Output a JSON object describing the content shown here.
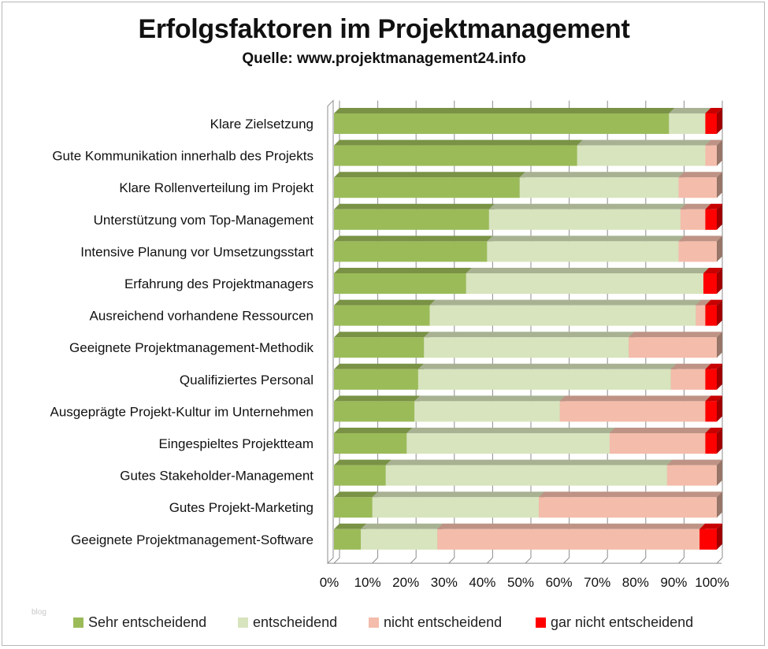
{
  "chart_data": {
    "type": "bar",
    "orientation": "horizontal",
    "stacked": "percent",
    "title": "Erfolgsfaktoren im Projektmanagement",
    "subtitle": "Quelle: www.projektmanagement24.info",
    "watermark": "blog",
    "xlim": [
      0,
      100
    ],
    "x_ticks": [
      "0%",
      "10%",
      "20%",
      "30%",
      "40%",
      "50%",
      "60%",
      "70%",
      "80%",
      "90%",
      "100%"
    ],
    "categories": [
      "Klare Zielsetzung",
      "Gute Kommunikation innerhalb des Projekts",
      "Klare Rollenverteilung im Projekt",
      "Unterstützung vom Top-Management",
      "Intensive Planung vor Umsetzungsstart",
      "Erfahrung des Projektmanagers",
      "Ausreichend vorhandene Ressourcen",
      "Geeignete Projektmanagement-Methodik",
      "Qualifiziertes Personal",
      "Ausgeprägte Projekt-Kultur im Unternehmen",
      "Eingespieltes Projektteam",
      "Gutes Stakeholder-Management",
      "Gutes Projekt-Marketing",
      "Geeignete Projektmanagement-Software"
    ],
    "series": [
      {
        "name": "Sehr entscheidend",
        "color": "#9bbb59",
        "values": [
          87.5,
          63.5,
          48.5,
          40.5,
          40,
          34.5,
          25,
          23.5,
          22,
          21,
          19,
          13.5,
          10,
          7
        ]
      },
      {
        "name": "entscheidend",
        "color": "#d7e4bd",
        "values": [
          9.5,
          33.5,
          41.5,
          50,
          50,
          62,
          69.5,
          53.5,
          66,
          38,
          53,
          73.5,
          43.5,
          20
        ]
      },
      {
        "name": "nicht entscheidend",
        "color": "#f4bcaa",
        "values": [
          0,
          3,
          10,
          6.5,
          10,
          0,
          2.5,
          23,
          9,
          38,
          25,
          13,
          46.5,
          68.5
        ]
      },
      {
        "name": "gar nicht entscheidend",
        "color": "#ff0000",
        "values": [
          3,
          0,
          0,
          3,
          0,
          3.5,
          3,
          0,
          3,
          3,
          3,
          0,
          0,
          4.5
        ]
      }
    ],
    "legend_position": "bottom"
  }
}
